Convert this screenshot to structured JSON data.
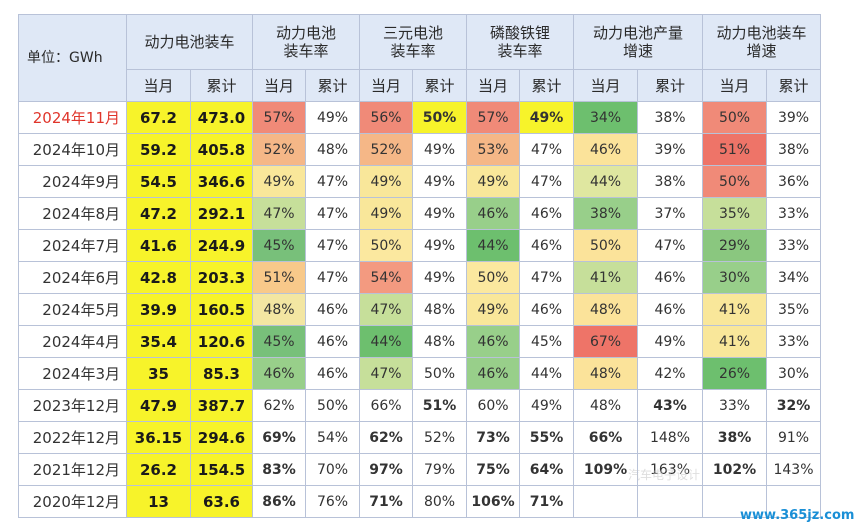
{
  "header": {
    "unit": "单位：GWh",
    "groups": [
      "动力电池装车",
      "动力电池\n装车率",
      "三元电池\n装车率",
      "磷酸铁锂\n装车率",
      "动力电池产量\n增速",
      "动力电池装车\n增速"
    ],
    "sub": [
      "当月",
      "累计"
    ]
  },
  "colors": {
    "header_bg": "#dfe8f6",
    "volume_bg": "#f7f32a",
    "highlight_text": "#e0352b"
  },
  "rows": [
    {
      "month": "2024年11月",
      "highlight": true,
      "cells": [
        "67.2",
        "473.0",
        "57%",
        "49%",
        "56%",
        "50%",
        "57%",
        "49%",
        "34%",
        "38%",
        "50%",
        "39%"
      ],
      "bg": [
        null,
        null,
        "#f08a78",
        null,
        "#f08a78",
        "#f7f32a",
        "#f08a78",
        "#f7f32a",
        "#6dbf6e",
        null,
        "#f08a78",
        null
      ],
      "style": [
        "",
        "",
        "",
        "",
        "",
        "b",
        "",
        "b",
        "",
        "",
        "",
        ""
      ]
    },
    {
      "month": "2024年10月",
      "cells": [
        "59.2",
        "405.8",
        "52%",
        "48%",
        "52%",
        "49%",
        "53%",
        "47%",
        "46%",
        "39%",
        "51%",
        "38%"
      ],
      "bg": [
        null,
        null,
        "#f5b787",
        null,
        "#f5b787",
        null,
        "#f5b787",
        null,
        "#fbe39a",
        null,
        "#ee7468",
        null
      ],
      "style": [
        "",
        "",
        "",
        "",
        "",
        "",
        "",
        "",
        "",
        "",
        "",
        ""
      ]
    },
    {
      "month": "2024年9月",
      "cells": [
        "54.5",
        "346.6",
        "49%",
        "47%",
        "49%",
        "49%",
        "49%",
        "47%",
        "44%",
        "38%",
        "50%",
        "36%"
      ],
      "bg": [
        null,
        null,
        "#f9e79a",
        null,
        "#f9e79a",
        null,
        "#f9e79a",
        null,
        "#dfe7a0",
        null,
        "#f08a78",
        null
      ],
      "style": [
        "",
        "",
        "",
        "",
        "",
        "",
        "",
        "",
        "",
        "",
        "",
        ""
      ]
    },
    {
      "month": "2024年8月",
      "cells": [
        "47.2",
        "292.1",
        "47%",
        "47%",
        "49%",
        "49%",
        "46%",
        "46%",
        "38%",
        "37%",
        "35%",
        "33%"
      ],
      "bg": [
        null,
        null,
        "#c6df9a",
        null,
        "#f9e79a",
        null,
        "#98cf8a",
        null,
        "#98cf8a",
        null,
        "#c6df9a",
        null
      ],
      "style": [
        "",
        "",
        "",
        "",
        "",
        "",
        "",
        "",
        "",
        "",
        "",
        ""
      ]
    },
    {
      "month": "2024年7月",
      "cells": [
        "41.6",
        "244.9",
        "45%",
        "47%",
        "50%",
        "49%",
        "44%",
        "46%",
        "50%",
        "47%",
        "29%",
        "33%"
      ],
      "bg": [
        null,
        null,
        "#78c07a",
        null,
        "#fbe89f",
        null,
        "#6dbf6e",
        null,
        "#fbe39a",
        null,
        "#8ac77f",
        null
      ],
      "style": [
        "",
        "",
        "",
        "",
        "",
        "",
        "",
        "",
        "",
        "",
        "",
        ""
      ]
    },
    {
      "month": "2024年6月",
      "cells": [
        "42.8",
        "203.3",
        "51%",
        "47%",
        "54%",
        "49%",
        "50%",
        "47%",
        "41%",
        "46%",
        "30%",
        "34%"
      ],
      "bg": [
        null,
        null,
        "#f8c98a",
        null,
        "#f39a80",
        null,
        "#fbe89f",
        null,
        "#c6df9a",
        null,
        "#98cf8a",
        null
      ],
      "style": [
        "",
        "",
        "",
        "",
        "",
        "",
        "",
        "",
        "",
        "",
        "",
        ""
      ]
    },
    {
      "month": "2024年5月",
      "cells": [
        "39.9",
        "160.5",
        "48%",
        "46%",
        "47%",
        "48%",
        "49%",
        "46%",
        "48%",
        "46%",
        "41%",
        "35%"
      ],
      "bg": [
        null,
        null,
        "#f3e6a2",
        null,
        "#c6df9a",
        null,
        "#f9e79a",
        null,
        "#fbe39a",
        null,
        "#f9e79a",
        null
      ],
      "style": [
        "",
        "",
        "",
        "",
        "",
        "",
        "",
        "",
        "",
        "",
        "",
        ""
      ]
    },
    {
      "month": "2024年4月",
      "cells": [
        "35.4",
        "120.6",
        "45%",
        "46%",
        "44%",
        "48%",
        "46%",
        "45%",
        "67%",
        "49%",
        "41%",
        "33%"
      ],
      "bg": [
        null,
        null,
        "#78c07a",
        null,
        "#6dbf6e",
        null,
        "#98cf8a",
        null,
        "#ee7468",
        null,
        "#f9e79a",
        null
      ],
      "style": [
        "",
        "",
        "",
        "",
        "",
        "",
        "",
        "",
        "",
        "",
        "",
        ""
      ]
    },
    {
      "month": "2024年3月",
      "cells": [
        "35",
        "85.3",
        "46%",
        "46%",
        "47%",
        "50%",
        "46%",
        "44%",
        "48%",
        "42%",
        "26%",
        "30%"
      ],
      "bg": [
        null,
        null,
        "#98cf8a",
        null,
        "#c6df9a",
        null,
        "#98cf8a",
        null,
        "#fbe39a",
        null,
        "#6dbf6e",
        null
      ],
      "style": [
        "",
        "",
        "",
        "",
        "",
        "",
        "",
        "",
        "",
        "",
        "",
        ""
      ]
    },
    {
      "month": "2023年12月",
      "cells": [
        "47.9",
        "387.7",
        "62%",
        "50%",
        "66%",
        "51%",
        "60%",
        "49%",
        "48%",
        "43%",
        "33%",
        "32%"
      ],
      "bg": [
        null,
        null,
        null,
        null,
        null,
        null,
        null,
        null,
        null,
        null,
        null,
        null
      ],
      "style": [
        "",
        "",
        "",
        "r",
        "",
        "rb",
        "",
        "",
        "",
        "rb",
        "",
        "rb"
      ]
    },
    {
      "month": "2022年12月",
      "cells": [
        "36.15",
        "294.6",
        "69%",
        "54%",
        "62%",
        "52%",
        "73%",
        "55%",
        "66%",
        "148%",
        "38%",
        "91%"
      ],
      "bg": [
        null,
        null,
        null,
        null,
        null,
        null,
        null,
        null,
        null,
        null,
        null,
        null
      ],
      "style": [
        "",
        "",
        "b",
        "r",
        "b",
        "r",
        "b",
        "b",
        "b",
        "r",
        "b",
        "r"
      ]
    },
    {
      "month": "2021年12月",
      "cells": [
        "26.2",
        "154.5",
        "83%",
        "70%",
        "97%",
        "79%",
        "75%",
        "64%",
        "109%",
        "163%",
        "102%",
        "143%"
      ],
      "bg": [
        null,
        null,
        null,
        null,
        null,
        null,
        null,
        null,
        null,
        null,
        null,
        null
      ],
      "style": [
        "",
        "",
        "b",
        "r",
        "b",
        "r",
        "b",
        "b",
        "b",
        "r",
        "b",
        "r"
      ]
    },
    {
      "month": "2020年12月",
      "cells": [
        "13",
        "63.6",
        "86%",
        "76%",
        "71%",
        "80%",
        "106%",
        "71%",
        "",
        "",
        "",
        ""
      ],
      "bg": [
        null,
        null,
        null,
        null,
        null,
        null,
        null,
        null,
        null,
        null,
        null,
        null
      ],
      "style": [
        "",
        "",
        "b",
        "r",
        "b",
        "r",
        "b",
        "b",
        "",
        "",
        "",
        ""
      ]
    }
  ],
  "watermark": "汽车电子设计",
  "footer": "www.365jz.com"
}
